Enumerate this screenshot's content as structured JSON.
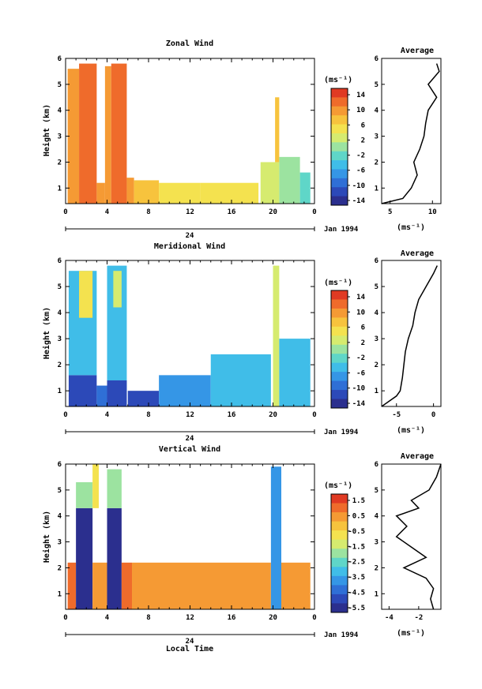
{
  "panels": [
    {
      "title": "Zonal Wind",
      "ylabel": "Height (km)",
      "date_label": "Jan 1994",
      "xticks": [
        "0",
        "4",
        "8",
        "12",
        "16",
        "20",
        "0"
      ],
      "day_label": "24",
      "colorbar": {
        "unit": "(ms⁻¹)",
        "ticks": [
          "14",
          "10",
          "6",
          "2",
          "-2",
          "-6",
          "-10",
          "-14"
        ]
      },
      "average": {
        "title": "Average",
        "xlabel": "(ms⁻¹)",
        "xticks": [
          "5",
          "10"
        ]
      }
    },
    {
      "title": "Meridional Wind",
      "ylabel": "Height (km)",
      "date_label": "Jan 1994",
      "xticks": [
        "0",
        "4",
        "8",
        "12",
        "16",
        "20",
        "0"
      ],
      "day_label": "24",
      "colorbar": {
        "unit": "(ms⁻¹)",
        "ticks": [
          "14",
          "10",
          "6",
          "2",
          "-2",
          "-6",
          "-10",
          "-14"
        ]
      },
      "average": {
        "title": "Average",
        "xlabel": "(ms⁻¹)",
        "xticks": [
          "-5",
          "0"
        ]
      }
    },
    {
      "title": "Vertical Wind",
      "ylabel": "Height (km)",
      "date_label": "Jan 1994",
      "xticks": [
        "0",
        "4",
        "8",
        "12",
        "16",
        "20",
        "0"
      ],
      "day_label": "24",
      "xlabel": "Local Time",
      "colorbar": {
        "unit": "(ms⁻¹)",
        "ticks": [
          "1.5",
          "0.5",
          "-0.5",
          "-1.5",
          "-2.5",
          "-3.5",
          "-4.5",
          "-5.5"
        ]
      },
      "average": {
        "title": "Average",
        "xlabel": "(ms⁻¹)",
        "xticks": [
          "-4",
          "-2"
        ]
      }
    }
  ],
  "chart_data": [
    {
      "type": "heatmap",
      "title": "Zonal Wind",
      "x_unit": "local time (h)",
      "xlim": [
        0,
        24
      ],
      "ylim": [
        0.4,
        6
      ],
      "yticks": [
        1,
        2,
        3,
        4,
        5,
        6
      ],
      "colorbar_range": [
        -16,
        16
      ],
      "blocks": [
        {
          "x": [
            0.2,
            1.3
          ],
          "y": [
            0.4,
            5.6
          ],
          "value": 11
        },
        {
          "x": [
            1.3,
            3.0
          ],
          "y": [
            0.4,
            5.8
          ],
          "value": 13
        },
        {
          "x": [
            3.0,
            3.8
          ],
          "y": [
            0.4,
            1.2
          ],
          "value": 9
        },
        {
          "x": [
            3.8,
            4.4
          ],
          "y": [
            0.4,
            5.7
          ],
          "value": 11
        },
        {
          "x": [
            4.4,
            5.9
          ],
          "y": [
            0.4,
            5.8
          ],
          "value": 12
        },
        {
          "x": [
            5.9,
            6.6
          ],
          "y": [
            0.4,
            1.4
          ],
          "value": 9
        },
        {
          "x": [
            6.6,
            9.0
          ],
          "y": [
            0.4,
            1.3
          ],
          "value": 8
        },
        {
          "x": [
            9.0,
            13.0
          ],
          "y": [
            0.4,
            1.2
          ],
          "value": 6
        },
        {
          "x": [
            13.0,
            18.6
          ],
          "y": [
            0.4,
            1.2
          ],
          "value": 6
        },
        {
          "x": [
            18.8,
            20.6
          ],
          "y": [
            0.4,
            2.0
          ],
          "value": 3
        },
        {
          "x": [
            20.2,
            20.6
          ],
          "y": [
            2.0,
            4.5
          ],
          "value": 7
        },
        {
          "x": [
            20.6,
            22.6
          ],
          "y": [
            0.4,
            2.2
          ],
          "value": 0
        },
        {
          "x": [
            22.6,
            23.6
          ],
          "y": [
            0.4,
            1.6
          ],
          "value": -2
        }
      ],
      "average_profile": {
        "height": [
          0.4,
          0.6,
          1.0,
          1.5,
          2.0,
          2.5,
          3.0,
          3.5,
          4.0,
          4.5,
          5.0,
          5.5,
          5.8
        ],
        "value": [
          4.0,
          6.5,
          7.5,
          8.2,
          7.8,
          8.5,
          9.0,
          9.2,
          9.5,
          10.5,
          9.5,
          10.8,
          10.5
        ],
        "xlim": [
          4,
          11
        ]
      }
    },
    {
      "type": "heatmap",
      "title": "Meridional Wind",
      "x_unit": "local time (h)",
      "xlim": [
        0,
        24
      ],
      "ylim": [
        0.4,
        6
      ],
      "yticks": [
        1,
        2,
        3,
        4,
        5,
        6
      ],
      "colorbar_range": [
        -16,
        16
      ],
      "blocks": [
        {
          "x": [
            0.3,
            3.0
          ],
          "y": [
            0.4,
            1.6
          ],
          "value": -12
        },
        {
          "x": [
            0.3,
            3.0
          ],
          "y": [
            1.6,
            5.6
          ],
          "value": -5
        },
        {
          "x": [
            1.3,
            2.6
          ],
          "y": [
            3.8,
            5.6
          ],
          "value": 4
        },
        {
          "x": [
            3.0,
            4.0
          ],
          "y": [
            0.4,
            1.2
          ],
          "value": -10
        },
        {
          "x": [
            4.0,
            5.9
          ],
          "y": [
            0.4,
            5.8
          ],
          "value": -5
        },
        {
          "x": [
            4.0,
            5.9
          ],
          "y": [
            0.4,
            1.4
          ],
          "value": -12
        },
        {
          "x": [
            4.6,
            5.4
          ],
          "y": [
            4.2,
            5.6
          ],
          "value": 3
        },
        {
          "x": [
            6.0,
            9.0
          ],
          "y": [
            0.4,
            1.0
          ],
          "value": -13
        },
        {
          "x": [
            9.0,
            14.0
          ],
          "y": [
            0.4,
            1.6
          ],
          "value": -8
        },
        {
          "x": [
            14.0,
            19.8
          ],
          "y": [
            0.4,
            2.4
          ],
          "value": -4
        },
        {
          "x": [
            20.0,
            20.6
          ],
          "y": [
            0.4,
            5.8
          ],
          "value": 2
        },
        {
          "x": [
            20.6,
            23.6
          ],
          "y": [
            0.4,
            3.0
          ],
          "value": -6
        }
      ],
      "average_profile": {
        "height": [
          0.4,
          0.8,
          1.0,
          1.5,
          2.0,
          2.5,
          3.0,
          3.5,
          4.0,
          4.5,
          5.0,
          5.5,
          5.8
        ],
        "value": [
          -7.0,
          -5.0,
          -4.5,
          -4.2,
          -4.0,
          -3.8,
          -3.4,
          -2.8,
          -2.5,
          -2.0,
          -1.0,
          0.0,
          0.5
        ],
        "xlim": [
          -7,
          1
        ]
      }
    },
    {
      "type": "heatmap",
      "title": "Vertical Wind",
      "x_unit": "local time (h)",
      "xlim": [
        0,
        24
      ],
      "ylim": [
        0.4,
        6
      ],
      "yticks": [
        1,
        2,
        3,
        4,
        5,
        6
      ],
      "colorbar_range": [
        -6,
        2
      ],
      "blocks": [
        {
          "x": [
            0.2,
            1.0
          ],
          "y": [
            0.4,
            2.2
          ],
          "value": 0.8
        },
        {
          "x": [
            1.0,
            2.6
          ],
          "y": [
            0.4,
            4.3
          ],
          "value": -5.8
        },
        {
          "x": [
            1.0,
            2.6
          ],
          "y": [
            4.3,
            5.3
          ],
          "value": -2.0
        },
        {
          "x": [
            2.6,
            3.2
          ],
          "y": [
            4.3,
            6.0
          ],
          "value": -1.0
        },
        {
          "x": [
            2.6,
            4.0
          ],
          "y": [
            0.4,
            2.2
          ],
          "value": 0.6
        },
        {
          "x": [
            4.0,
            5.4
          ],
          "y": [
            0.4,
            4.3
          ],
          "value": -5.8
        },
        {
          "x": [
            4.0,
            5.4
          ],
          "y": [
            4.3,
            5.8
          ],
          "value": -1.8
        },
        {
          "x": [
            5.4,
            6.4
          ],
          "y": [
            0.4,
            2.2
          ],
          "value": 0.8
        },
        {
          "x": [
            6.4,
            19.8
          ],
          "y": [
            0.4,
            2.2
          ],
          "value": 0.6
        },
        {
          "x": [
            19.8,
            20.8
          ],
          "y": [
            0.4,
            5.9
          ],
          "value": -4.0
        },
        {
          "x": [
            20.8,
            23.6
          ],
          "y": [
            0.4,
            2.2
          ],
          "value": 0.6
        }
      ],
      "average_profile": {
        "height": [
          0.4,
          0.8,
          1.2,
          1.6,
          2.0,
          2.4,
          2.8,
          3.2,
          3.6,
          4.0,
          4.3,
          4.6,
          5.0,
          5.5,
          6.0
        ],
        "value": [
          -1.0,
          -1.2,
          -1.0,
          -1.5,
          -3.0,
          -1.5,
          -2.5,
          -3.5,
          -2.8,
          -3.5,
          -2.0,
          -2.5,
          -1.3,
          -0.8,
          -0.5
        ],
        "xlim": [
          -4.5,
          -0.5
        ]
      }
    }
  ]
}
